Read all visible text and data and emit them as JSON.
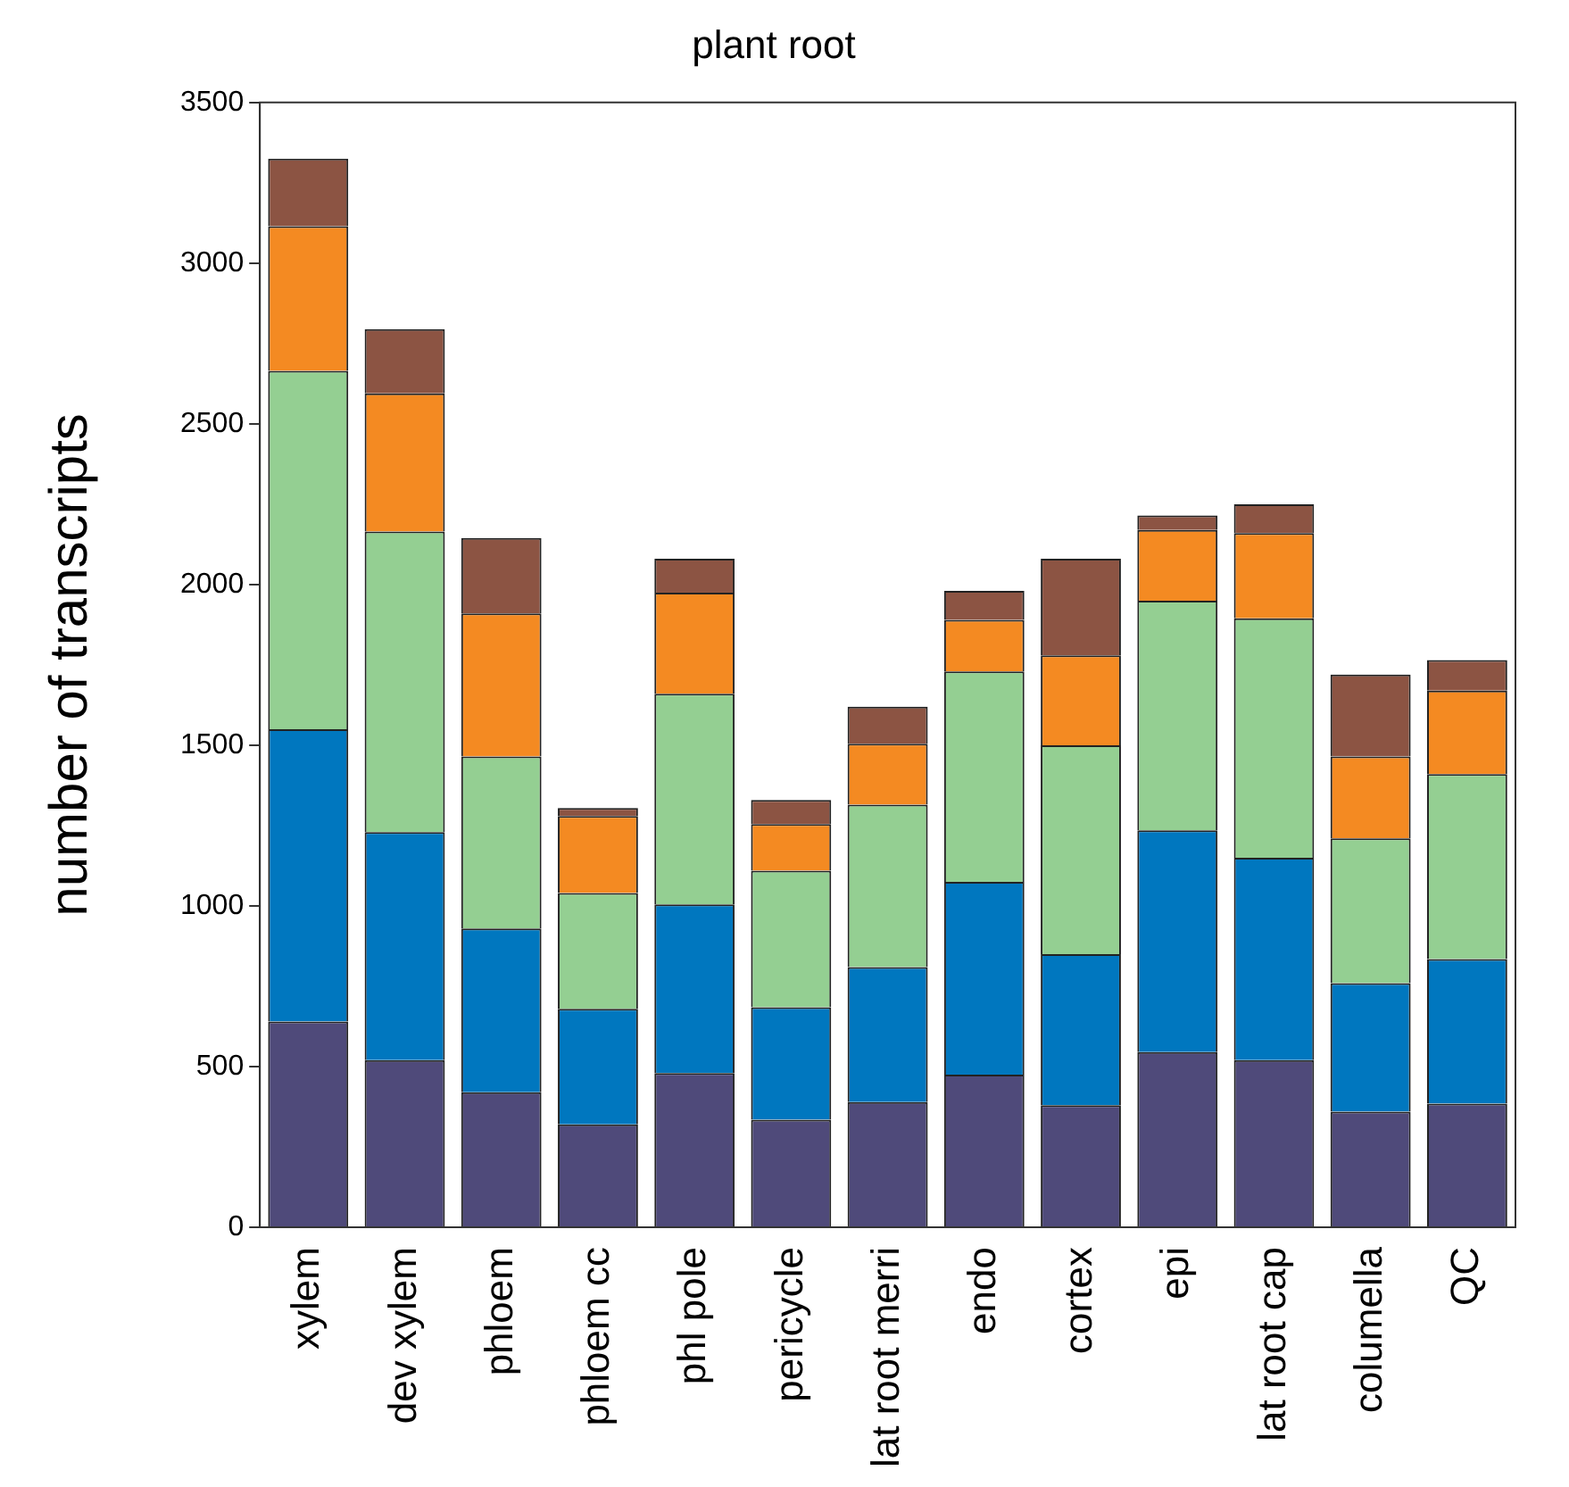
{
  "chart_data": {
    "type": "bar",
    "title": "plant root",
    "ylabel": "number of transcripts",
    "categories": [
      "xylem",
      "dev xylem",
      "phloem",
      "phloem cc",
      "phl pole",
      "pericycle",
      "lat root merri",
      "endo",
      "cortex",
      "epi",
      "lat root cap",
      "columella",
      "QC"
    ],
    "stacked": true,
    "series": [
      {
        "color": "#4f4a7a",
        "values": [
          640,
          520,
          420,
          320,
          480,
          335,
          390,
          475,
          380,
          545,
          520,
          360,
          385
        ]
      },
      {
        "color": "#0077bf",
        "values": [
          910,
          710,
          510,
          360,
          525,
          350,
          420,
          600,
          470,
          690,
          630,
          400,
          450
        ]
      },
      {
        "color": "#94cf92",
        "values": [
          1115,
          935,
          535,
          360,
          655,
          425,
          505,
          655,
          650,
          715,
          745,
          450,
          575
        ]
      },
      {
        "color": "#f48a22",
        "values": [
          450,
          430,
          445,
          240,
          315,
          145,
          190,
          160,
          280,
          220,
          265,
          255,
          260
        ]
      },
      {
        "color": "#8c5443",
        "values": [
          210,
          200,
          235,
          25,
          105,
          75,
          115,
          90,
          300,
          45,
          90,
          255,
          95
        ]
      }
    ],
    "ylim": [
      0,
      3500
    ],
    "yticks": [
      0,
      500,
      1000,
      1500,
      2000,
      2500,
      3000,
      3500
    ],
    "grid": false,
    "legend": false
  }
}
